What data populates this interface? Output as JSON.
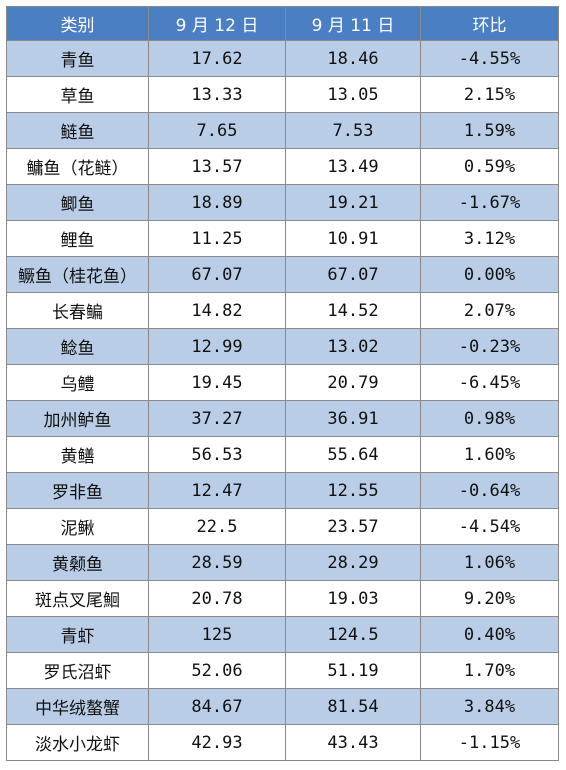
{
  "table": {
    "headers": [
      "类别",
      "9 月 12 日",
      "9 月 11 日",
      "环比"
    ],
    "rows": [
      [
        "青鱼",
        "17.62",
        "18.46",
        "-4.55%"
      ],
      [
        "草鱼",
        "13.33",
        "13.05",
        "2.15%"
      ],
      [
        "鲢鱼",
        "7.65",
        "7.53",
        "1.59%"
      ],
      [
        "鳙鱼（花鲢）",
        "13.57",
        "13.49",
        "0.59%"
      ],
      [
        "鲫鱼",
        "18.89",
        "19.21",
        "-1.67%"
      ],
      [
        "鲤鱼",
        "11.25",
        "10.91",
        "3.12%"
      ],
      [
        "鳜鱼（桂花鱼）",
        "67.07",
        "67.07",
        "0.00%"
      ],
      [
        "长春鳊",
        "14.82",
        "14.52",
        "2.07%"
      ],
      [
        "鲶鱼",
        "12.99",
        "13.02",
        "-0.23%"
      ],
      [
        "乌鳢",
        "19.45",
        "20.79",
        "-6.45%"
      ],
      [
        "加州鲈鱼",
        "37.27",
        "36.91",
        "0.98%"
      ],
      [
        "黄鳝",
        "56.53",
        "55.64",
        "1.60%"
      ],
      [
        "罗非鱼",
        "12.47",
        "12.55",
        "-0.64%"
      ],
      [
        "泥鳅",
        "22.5",
        "23.57",
        "-4.54%"
      ],
      [
        "黄颡鱼",
        "28.59",
        "28.29",
        "1.06%"
      ],
      [
        "斑点叉尾鮰",
        "20.78",
        "19.03",
        "9.20%"
      ],
      [
        "青虾",
        "125",
        "124.5",
        "0.40%"
      ],
      [
        "罗氏沼虾",
        "52.06",
        "51.19",
        "1.70%"
      ],
      [
        "中华绒螯蟹",
        "84.67",
        "81.54",
        "3.84%"
      ],
      [
        "淡水小龙虾",
        "42.93",
        "43.43",
        "-1.15%"
      ]
    ]
  },
  "colors": {
    "header_bg": "#4a7fc4",
    "header_text": "#ffffff",
    "band_row": "#b9cde6",
    "plain_row": "#ffffff",
    "grid": "#8a8a8a"
  }
}
